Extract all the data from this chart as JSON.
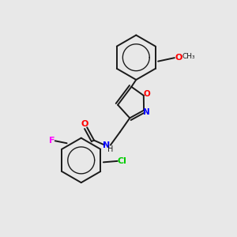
{
  "background_color": "#e8e8e8",
  "bond_color": "#1a1a1a",
  "atom_colors": {
    "O": "#ff0000",
    "N": "#0000ff",
    "F": "#ff00ff",
    "Cl": "#00cc00",
    "C": "#1a1a1a",
    "H": "#1a1a1a"
  },
  "figsize": [
    3.0,
    3.0
  ],
  "dpi": 100
}
